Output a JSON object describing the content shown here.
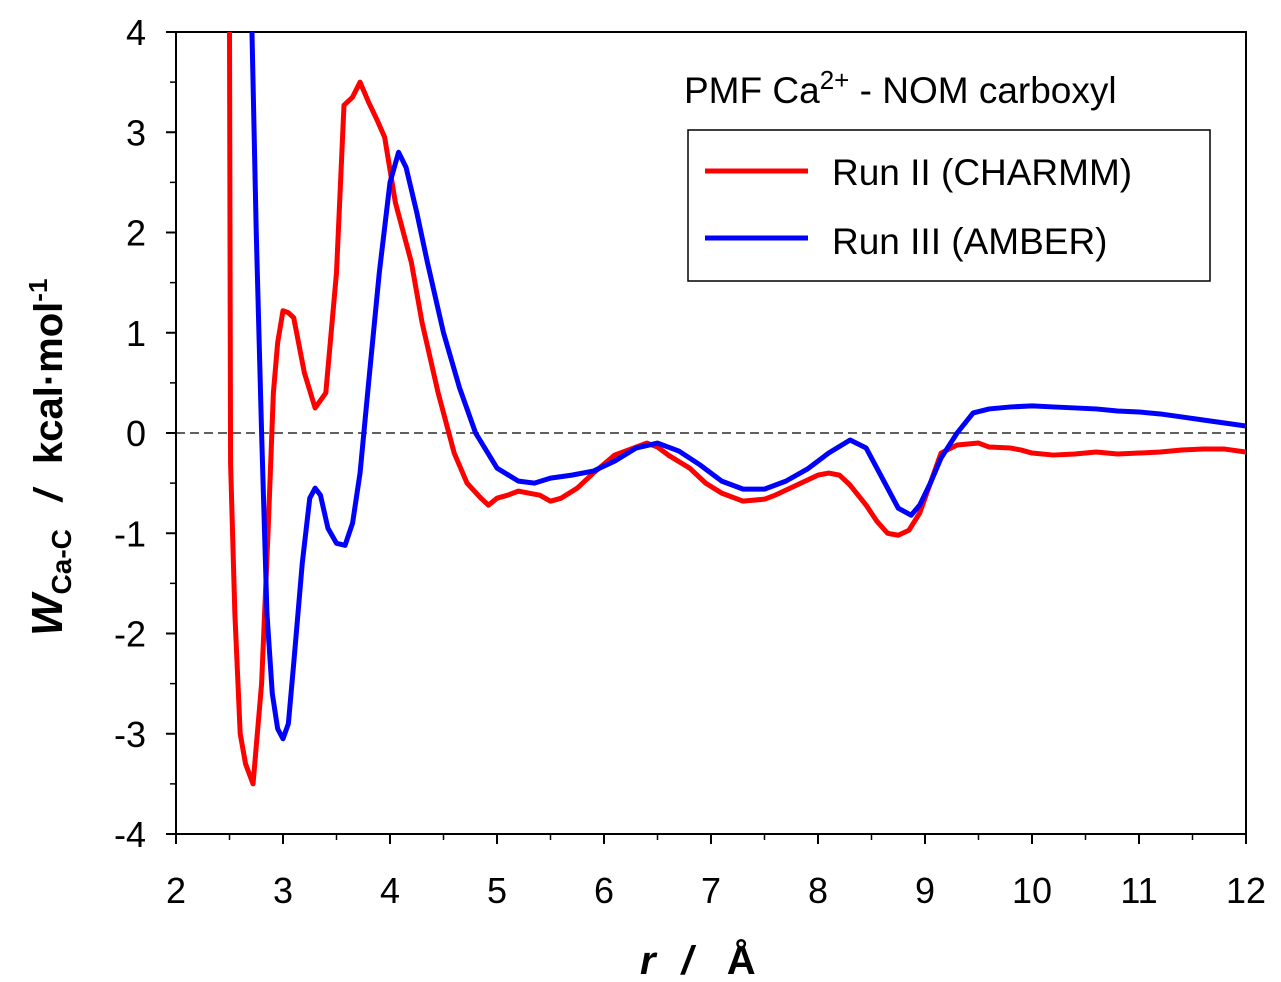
{
  "chart_data": {
    "type": "line",
    "title": {
      "prefix": "PMF Ca",
      "superscript": "2+",
      "suffix": " - NOM carboxyl"
    },
    "xlabel": {
      "var": "r",
      "sep": "/",
      "unit": "Å"
    },
    "ylabel": {
      "var": "W",
      "subscript": "Ca-C",
      "sep": "/",
      "unit": "kcal·mol",
      "unit_superscript": "-1"
    },
    "xlim": [
      2,
      12
    ],
    "ylim": [
      -4,
      4
    ],
    "xticks": [
      2,
      3,
      4,
      5,
      6,
      7,
      8,
      9,
      10,
      11,
      12
    ],
    "yticks": [
      -4,
      -3,
      -2,
      -1,
      0,
      1,
      2,
      3,
      4
    ],
    "grid": false,
    "reference_line": {
      "y": 0,
      "style": "dashed"
    },
    "legend_position": "top-right",
    "series": [
      {
        "name": "Run II (CHARMM)",
        "color": "#ff0000",
        "x": [
          2.5,
          2.51,
          2.55,
          2.6,
          2.65,
          2.72,
          2.8,
          2.86,
          2.91,
          2.95,
          3.0,
          3.05,
          3.1,
          3.2,
          3.3,
          3.4,
          3.5,
          3.57,
          3.65,
          3.72,
          3.8,
          3.88,
          3.95,
          4.05,
          4.2,
          4.3,
          4.45,
          4.6,
          4.72,
          4.85,
          4.92,
          5.0,
          5.1,
          5.2,
          5.3,
          5.4,
          5.5,
          5.6,
          5.75,
          5.9,
          6.1,
          6.3,
          6.4,
          6.5,
          6.6,
          6.8,
          6.95,
          7.1,
          7.3,
          7.5,
          7.6,
          7.8,
          8.0,
          8.1,
          8.2,
          8.3,
          8.45,
          8.55,
          8.65,
          8.75,
          8.85,
          8.95,
          9.05,
          9.15,
          9.3,
          9.5,
          9.6,
          9.8,
          9.9,
          10.0,
          10.2,
          10.4,
          10.6,
          10.8,
          11.0,
          11.2,
          11.4,
          11.6,
          11.8,
          12.0
        ],
        "y": [
          4.0,
          -0.3,
          -1.8,
          -3.0,
          -3.3,
          -3.5,
          -2.5,
          -1.0,
          0.4,
          0.9,
          1.22,
          1.2,
          1.15,
          0.6,
          0.25,
          0.4,
          1.6,
          3.27,
          3.35,
          3.5,
          3.3,
          3.12,
          2.95,
          2.3,
          1.7,
          1.1,
          0.4,
          -0.2,
          -0.5,
          -0.65,
          -0.72,
          -0.65,
          -0.62,
          -0.58,
          -0.6,
          -0.62,
          -0.68,
          -0.65,
          -0.55,
          -0.4,
          -0.22,
          -0.14,
          -0.1,
          -0.14,
          -0.22,
          -0.35,
          -0.5,
          -0.6,
          -0.68,
          -0.66,
          -0.62,
          -0.52,
          -0.42,
          -0.4,
          -0.42,
          -0.52,
          -0.72,
          -0.88,
          -1.0,
          -1.02,
          -0.97,
          -0.8,
          -0.5,
          -0.2,
          -0.12,
          -0.1,
          -0.14,
          -0.15,
          -0.17,
          -0.2,
          -0.22,
          -0.21,
          -0.19,
          -0.21,
          -0.2,
          -0.19,
          -0.17,
          -0.16,
          -0.16,
          -0.19
        ]
      },
      {
        "name": "Run III (AMBER)",
        "color": "#0000ff",
        "x": [
          2.71,
          2.75,
          2.8,
          2.85,
          2.9,
          2.95,
          3.0,
          3.05,
          3.1,
          3.18,
          3.25,
          3.3,
          3.35,
          3.42,
          3.5,
          3.58,
          3.65,
          3.72,
          3.8,
          3.9,
          4.0,
          4.08,
          4.15,
          4.25,
          4.35,
          4.5,
          4.65,
          4.8,
          5.0,
          5.2,
          5.35,
          5.5,
          5.7,
          5.9,
          6.1,
          6.3,
          6.5,
          6.7,
          6.9,
          7.1,
          7.3,
          7.5,
          7.7,
          7.9,
          8.1,
          8.3,
          8.45,
          8.6,
          8.75,
          8.87,
          8.95,
          9.05,
          9.15,
          9.3,
          9.45,
          9.6,
          9.8,
          10.0,
          10.2,
          10.4,
          10.6,
          10.8,
          11.0,
          11.2,
          11.4,
          11.6,
          11.8,
          12.0
        ],
        "y": [
          4.0,
          2.0,
          0.0,
          -1.8,
          -2.6,
          -2.95,
          -3.05,
          -2.9,
          -2.3,
          -1.3,
          -0.65,
          -0.55,
          -0.62,
          -0.95,
          -1.1,
          -1.12,
          -0.9,
          -0.4,
          0.5,
          1.6,
          2.5,
          2.8,
          2.65,
          2.2,
          1.7,
          1.0,
          0.45,
          0.0,
          -0.35,
          -0.48,
          -0.5,
          -0.45,
          -0.42,
          -0.38,
          -0.28,
          -0.15,
          -0.1,
          -0.18,
          -0.32,
          -0.48,
          -0.56,
          -0.56,
          -0.48,
          -0.36,
          -0.2,
          -0.07,
          -0.15,
          -0.45,
          -0.75,
          -0.82,
          -0.72,
          -0.5,
          -0.25,
          0.0,
          0.2,
          0.24,
          0.26,
          0.27,
          0.26,
          0.25,
          0.24,
          0.22,
          0.21,
          0.19,
          0.16,
          0.13,
          0.1,
          0.07
        ]
      }
    ]
  }
}
